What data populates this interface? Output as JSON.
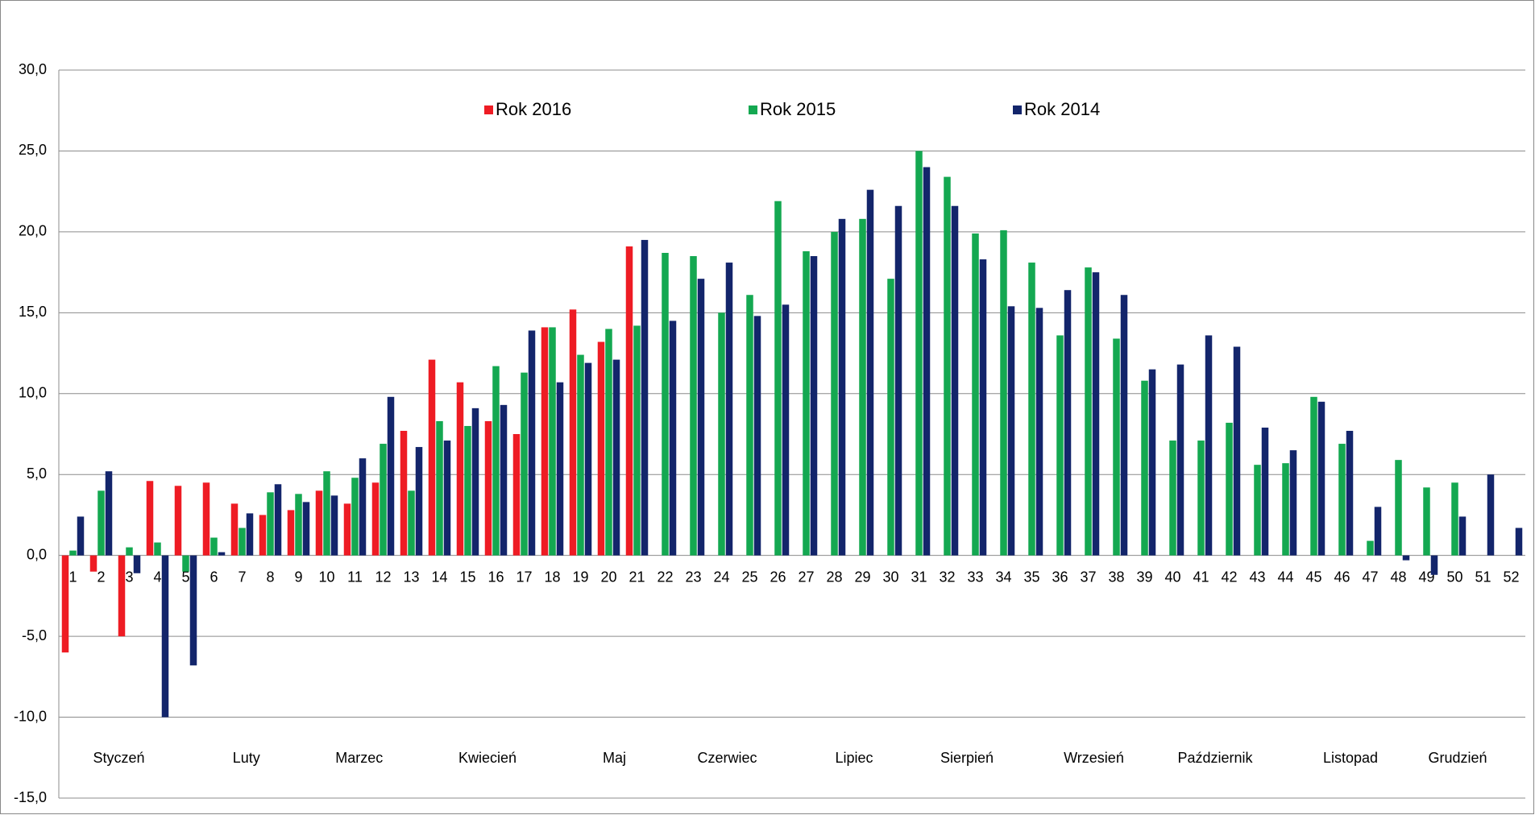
{
  "chart_data": {
    "type": "bar",
    "categories": [
      "1",
      "2",
      "3",
      "4",
      "5",
      "6",
      "7",
      "8",
      "9",
      "10",
      "11",
      "12",
      "13",
      "14",
      "15",
      "16",
      "17",
      "18",
      "19",
      "20",
      "21",
      "22",
      "23",
      "24",
      "25",
      "26",
      "27",
      "28",
      "29",
      "30",
      "31",
      "32",
      "33",
      "34",
      "35",
      "36",
      "37",
      "38",
      "39",
      "40",
      "41",
      "42",
      "43",
      "44",
      "45",
      "46",
      "47",
      "48",
      "49",
      "50",
      "51",
      "52"
    ],
    "series": [
      {
        "name": "Rok 2016",
        "color": "#ee1c24",
        "values": [
          -6.0,
          -1.0,
          -5.0,
          4.6,
          4.3,
          4.5,
          3.2,
          2.5,
          2.8,
          4.0,
          3.2,
          4.5,
          7.7,
          12.1,
          10.7,
          8.3,
          7.5,
          14.1,
          15.2,
          13.2,
          19.1,
          null,
          null,
          null,
          null,
          null,
          null,
          null,
          null,
          null,
          null,
          null,
          null,
          null,
          null,
          null,
          null,
          null,
          null,
          null,
          null,
          null,
          null,
          null,
          null,
          null,
          null,
          null,
          null,
          null,
          null,
          null
        ]
      },
      {
        "name": "Rok 2015",
        "color": "#14a851",
        "values": [
          0.3,
          4.0,
          0.5,
          0.8,
          -1.0,
          1.1,
          1.7,
          3.9,
          3.8,
          5.2,
          4.8,
          6.9,
          4.0,
          8.3,
          8.0,
          11.7,
          11.3,
          14.1,
          12.4,
          14.0,
          14.2,
          18.7,
          18.5,
          15.0,
          16.1,
          21.9,
          18.8,
          20.0,
          20.8,
          17.1,
          25.0,
          23.4,
          19.9,
          20.1,
          18.1,
          13.6,
          17.8,
          13.4,
          10.8,
          7.1,
          7.1,
          8.2,
          5.6,
          5.7,
          9.8,
          6.9,
          0.9,
          5.9,
          4.2,
          4.5,
          null,
          null
        ]
      },
      {
        "name": "Rok 2014",
        "color": "#13256b",
        "values": [
          2.4,
          5.2,
          -1.1,
          -10.0,
          -6.8,
          0.2,
          2.6,
          4.4,
          3.3,
          3.7,
          6.0,
          9.8,
          6.7,
          7.1,
          9.1,
          9.3,
          13.9,
          10.7,
          11.9,
          12.1,
          19.5,
          14.5,
          17.1,
          18.1,
          14.8,
          15.5,
          18.5,
          20.8,
          22.6,
          21.6,
          24.0,
          21.6,
          18.3,
          15.4,
          15.3,
          16.4,
          17.5,
          16.1,
          11.5,
          11.8,
          13.6,
          12.9,
          7.9,
          6.5,
          9.5,
          7.7,
          3.0,
          -0.3,
          -1.2,
          2.4,
          5.0,
          1.7
        ]
      }
    ],
    "annotations": [
      "Styczeń",
      "Luty",
      "Marzec",
      "Kwiecień",
      "Maj",
      "Czerwiec",
      "Lipiec",
      "Sierpień",
      "Wrzesień",
      "Październik",
      "Listopad",
      "Grudzień"
    ],
    "ylim": [
      -15,
      30
    ],
    "yticks": [
      {
        "value": -15,
        "label": "-15,0"
      },
      {
        "value": -10,
        "label": "-10,0"
      },
      {
        "value": -5,
        "label": "-5,0"
      },
      {
        "value": 0,
        "label": "0,0"
      },
      {
        "value": 5,
        "label": "5,0"
      },
      {
        "value": 10,
        "label": "10,0"
      },
      {
        "value": 15,
        "label": "15,0"
      },
      {
        "value": 20,
        "label": "20,0"
      },
      {
        "value": 25,
        "label": "25,0"
      },
      {
        "value": 30,
        "label": "30,0"
      }
    ],
    "grid": true,
    "legend": "top"
  }
}
